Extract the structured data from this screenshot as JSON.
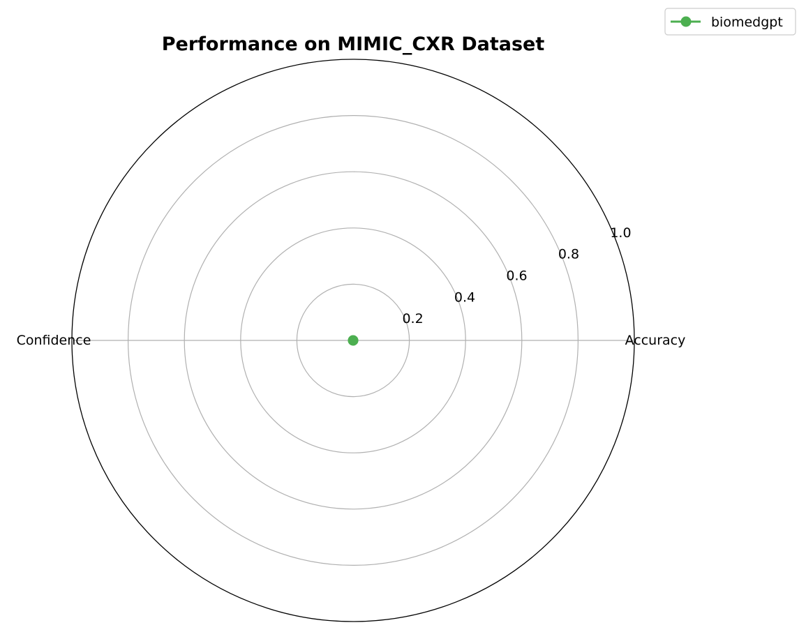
{
  "chart_data": {
    "type": "radar",
    "title": "Performance on MIMIC_CXR Dataset",
    "categories": [
      "Accuracy",
      "Confidence"
    ],
    "radial_ticks": [
      "0.2",
      "0.4",
      "0.6",
      "0.8",
      "1.0"
    ],
    "radial_tick_values": [
      0.2,
      0.4,
      0.6,
      0.8,
      1.0
    ],
    "rlim": [
      0,
      1.0
    ],
    "grid": true,
    "legend_position": "top-right",
    "series": [
      {
        "name": "biomedgpt",
        "values": [
          0.0,
          0.0
        ],
        "color": "#4caf50"
      }
    ]
  }
}
